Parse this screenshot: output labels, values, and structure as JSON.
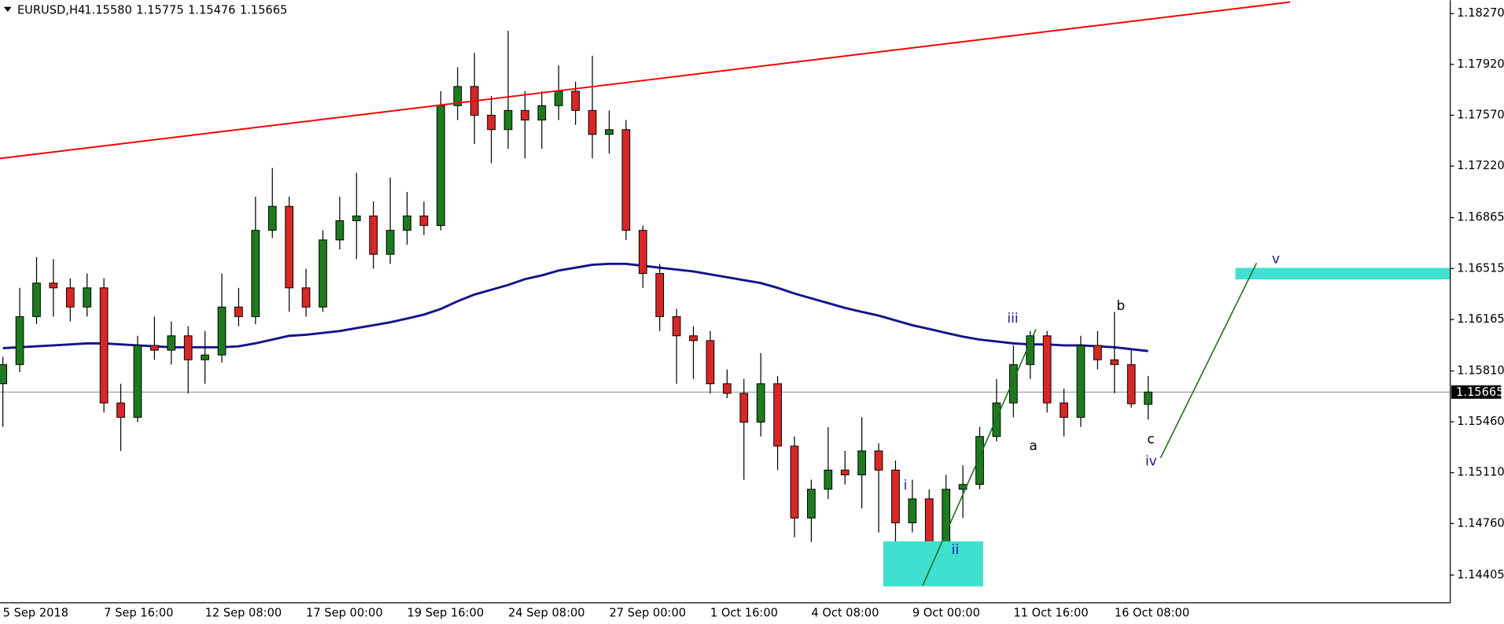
{
  "chart_data": {
    "type": "candlestick",
    "title": "EURUSD,H4",
    "ohlc_readout": [
      "1.15580",
      "1.15775",
      "1.15476",
      "1.15665"
    ],
    "categories": [
      "5 Sep 2018",
      null,
      null,
      null,
      null,
      null,
      "7 Sep 16:00",
      null,
      null,
      null,
      null,
      null,
      "12 Sep 08:00",
      null,
      null,
      null,
      null,
      null,
      "17 Sep 00:00",
      null,
      null,
      null,
      null,
      null,
      "19 Sep 16:00",
      null,
      null,
      null,
      null,
      null,
      "24 Sep 08:00",
      null,
      null,
      null,
      null,
      null,
      "27 Sep 00:00",
      null,
      null,
      null,
      null,
      null,
      "1 Oct 16:00",
      null,
      null,
      null,
      null,
      null,
      "4 Oct 08:00",
      null,
      null,
      null,
      null,
      null,
      "9 Oct 00:00",
      null,
      null,
      null,
      null,
      null,
      "11 Oct 16:00",
      null,
      null,
      null,
      null,
      null,
      "16 Oct 08:00",
      null,
      null
    ],
    "open": [
      1.15722,
      1.15854,
      1.16184,
      1.16415,
      1.16382,
      1.1625,
      1.16382,
      1.1559,
      1.15491,
      1.15986,
      1.15953,
      1.16052,
      1.15887,
      1.1592,
      1.1625,
      1.16184,
      1.16778,
      1.16943,
      1.16382,
      1.1625,
      1.16712,
      1.16844,
      1.16877,
      1.16613,
      1.16778,
      1.16877,
      1.16811,
      1.17636,
      1.17768,
      1.1757,
      1.17471,
      1.17603,
      1.17537,
      1.17636,
      1.17735,
      1.17603,
      1.17438,
      1.17471,
      1.16778,
      1.16481,
      1.16184,
      1.16052,
      1.16019,
      1.15722,
      1.15656,
      1.15458,
      1.15722,
      1.15293,
      1.14798,
      1.14996,
      1.15128,
      1.15095,
      1.1526,
      1.15128,
      1.14765,
      1.1493,
      1.14501,
      1.14996,
      1.15029,
      1.15359,
      1.1559,
      1.15854,
      1.16052,
      1.1559,
      1.15491,
      1.15986,
      1.15887,
      1.15854,
      1.1558
    ],
    "high": [
      1.15907,
      1.16382,
      1.16594,
      1.1658,
      1.16448,
      1.16481,
      1.16448,
      1.15722,
      1.16052,
      1.16184,
      1.16151,
      1.16118,
      1.16085,
      1.16481,
      1.16382,
      1.17009,
      1.17207,
      1.17009,
      1.16514,
      1.16778,
      1.17009,
      1.17174,
      1.16976,
      1.17141,
      1.17042,
      1.16976,
      1.17735,
      1.179,
      1.17999,
      1.17702,
      1.18151,
      1.17735,
      1.17735,
      1.17914,
      1.17801,
      1.1798,
      1.17603,
      1.17537,
      1.16811,
      1.16547,
      1.16237,
      1.16118,
      1.16085,
      1.15821,
      1.15755,
      1.15934,
      1.15775,
      1.15359,
      1.15062,
      1.15425,
      1.1526,
      1.15491,
      1.15313,
      1.15194,
      1.15062,
      1.14996,
      1.15095,
      1.15161,
      1.15425,
      1.15755,
      1.15986,
      1.16085,
      1.16085,
      1.15689,
      1.16052,
      1.16085,
      1.16217,
      1.15953,
      1.15775
    ],
    "low": [
      1.15425,
      1.15802,
      1.16132,
      1.16184,
      1.16151,
      1.16184,
      1.15524,
      1.1526,
      1.15458,
      1.15887,
      1.15854,
      1.15656,
      1.15722,
      1.15868,
      1.16118,
      1.16132,
      1.16726,
      1.16217,
      1.16184,
      1.16217,
      1.16646,
      1.1658,
      1.16514,
      1.16547,
      1.16679,
      1.16745,
      1.16778,
      1.17537,
      1.17372,
      1.1724,
      1.17339,
      1.17273,
      1.17339,
      1.17537,
      1.17504,
      1.17273,
      1.17306,
      1.16712,
      1.16382,
      1.16085,
      1.15722,
      1.15755,
      1.15656,
      1.15623,
      1.15062,
      1.15359,
      1.15128,
      1.14666,
      1.14633,
      1.1493,
      1.15029,
      1.14864,
      1.14699,
      1.14614,
      1.14699,
      1.14336,
      1.14468,
      1.14798,
      1.14996,
      1.15326,
      1.15491,
      1.15755,
      1.15524,
      1.15359,
      1.15425,
      1.15821,
      1.15656,
      1.15557,
      1.15476
    ],
    "close": [
      1.15854,
      1.16184,
      1.16415,
      1.16382,
      1.1625,
      1.16382,
      1.1559,
      1.15491,
      1.15986,
      1.15953,
      1.16052,
      1.15887,
      1.1592,
      1.1625,
      1.16184,
      1.16778,
      1.16943,
      1.16382,
      1.1625,
      1.16712,
      1.16844,
      1.16877,
      1.16613,
      1.16778,
      1.16877,
      1.16811,
      1.17636,
      1.17768,
      1.1757,
      1.17471,
      1.17603,
      1.17537,
      1.17636,
      1.17735,
      1.17603,
      1.17438,
      1.17471,
      1.16778,
      1.16481,
      1.16184,
      1.16052,
      1.16019,
      1.15722,
      1.15656,
      1.15458,
      1.15722,
      1.15293,
      1.14798,
      1.14996,
      1.15128,
      1.15095,
      1.1526,
      1.15128,
      1.14765,
      1.1493,
      1.14501,
      1.14996,
      1.15029,
      1.15359,
      1.1559,
      1.15854,
      1.16052,
      1.1559,
      1.15491,
      1.15986,
      1.15887,
      1.15854,
      1.15584,
      1.15665
    ],
    "up_color": "#1e7a1e",
    "down_color": "#d92626",
    "moving_average": {
      "color": "#14148c",
      "values": [
        1.15967,
        1.15973,
        1.1598,
        1.15986,
        1.15993,
        1.16,
        1.16,
        1.15993,
        1.15986,
        1.1598,
        1.15973,
        1.15973,
        1.15973,
        1.15973,
        1.1598,
        1.16,
        1.16026,
        1.16052,
        1.16059,
        1.16072,
        1.16085,
        1.16105,
        1.16125,
        1.16145,
        1.16171,
        1.16198,
        1.16237,
        1.1629,
        1.16336,
        1.16369,
        1.16402,
        1.16442,
        1.16468,
        1.16501,
        1.16521,
        1.16541,
        1.16547,
        1.16547,
        1.16534,
        1.16521,
        1.16508,
        1.16495,
        1.16475,
        1.16455,
        1.16435,
        1.16415,
        1.16382,
        1.16343,
        1.1631,
        1.16277,
        1.16244,
        1.16217,
        1.16191,
        1.16158,
        1.16125,
        1.16099,
        1.16072,
        1.16046,
        1.16026,
        1.16013,
        1.16,
        1.15993,
        1.15993,
        1.15986,
        1.15986,
        1.1598,
        1.15973,
        1.1596,
        1.15947
      ]
    },
    "last_price": 1.15665,
    "ylim": [
      1.14215,
      1.18362
    ],
    "yticks": [
      {
        "value": 1.1827,
        "label": "1.18270"
      },
      {
        "value": 1.1792,
        "label": "1.17920"
      },
      {
        "value": 1.1757,
        "label": "1.17570"
      },
      {
        "value": 1.1722,
        "label": "1.17220"
      },
      1.16865,
      1.16515,
      1.16165,
      {
        "value": 1.1581,
        "label": "1.15810"
      },
      {
        "value": 1.1546,
        "label": "1.15460"
      },
      {
        "value": 1.1511,
        "label": "1.15110"
      },
      {
        "value": 1.1476,
        "label": "1.14760"
      },
      1.14405
    ],
    "grid": false,
    "wave_labels": [
      "i",
      "ii",
      "iii",
      "iv",
      "v",
      "a",
      "b",
      "c"
    ]
  }
}
